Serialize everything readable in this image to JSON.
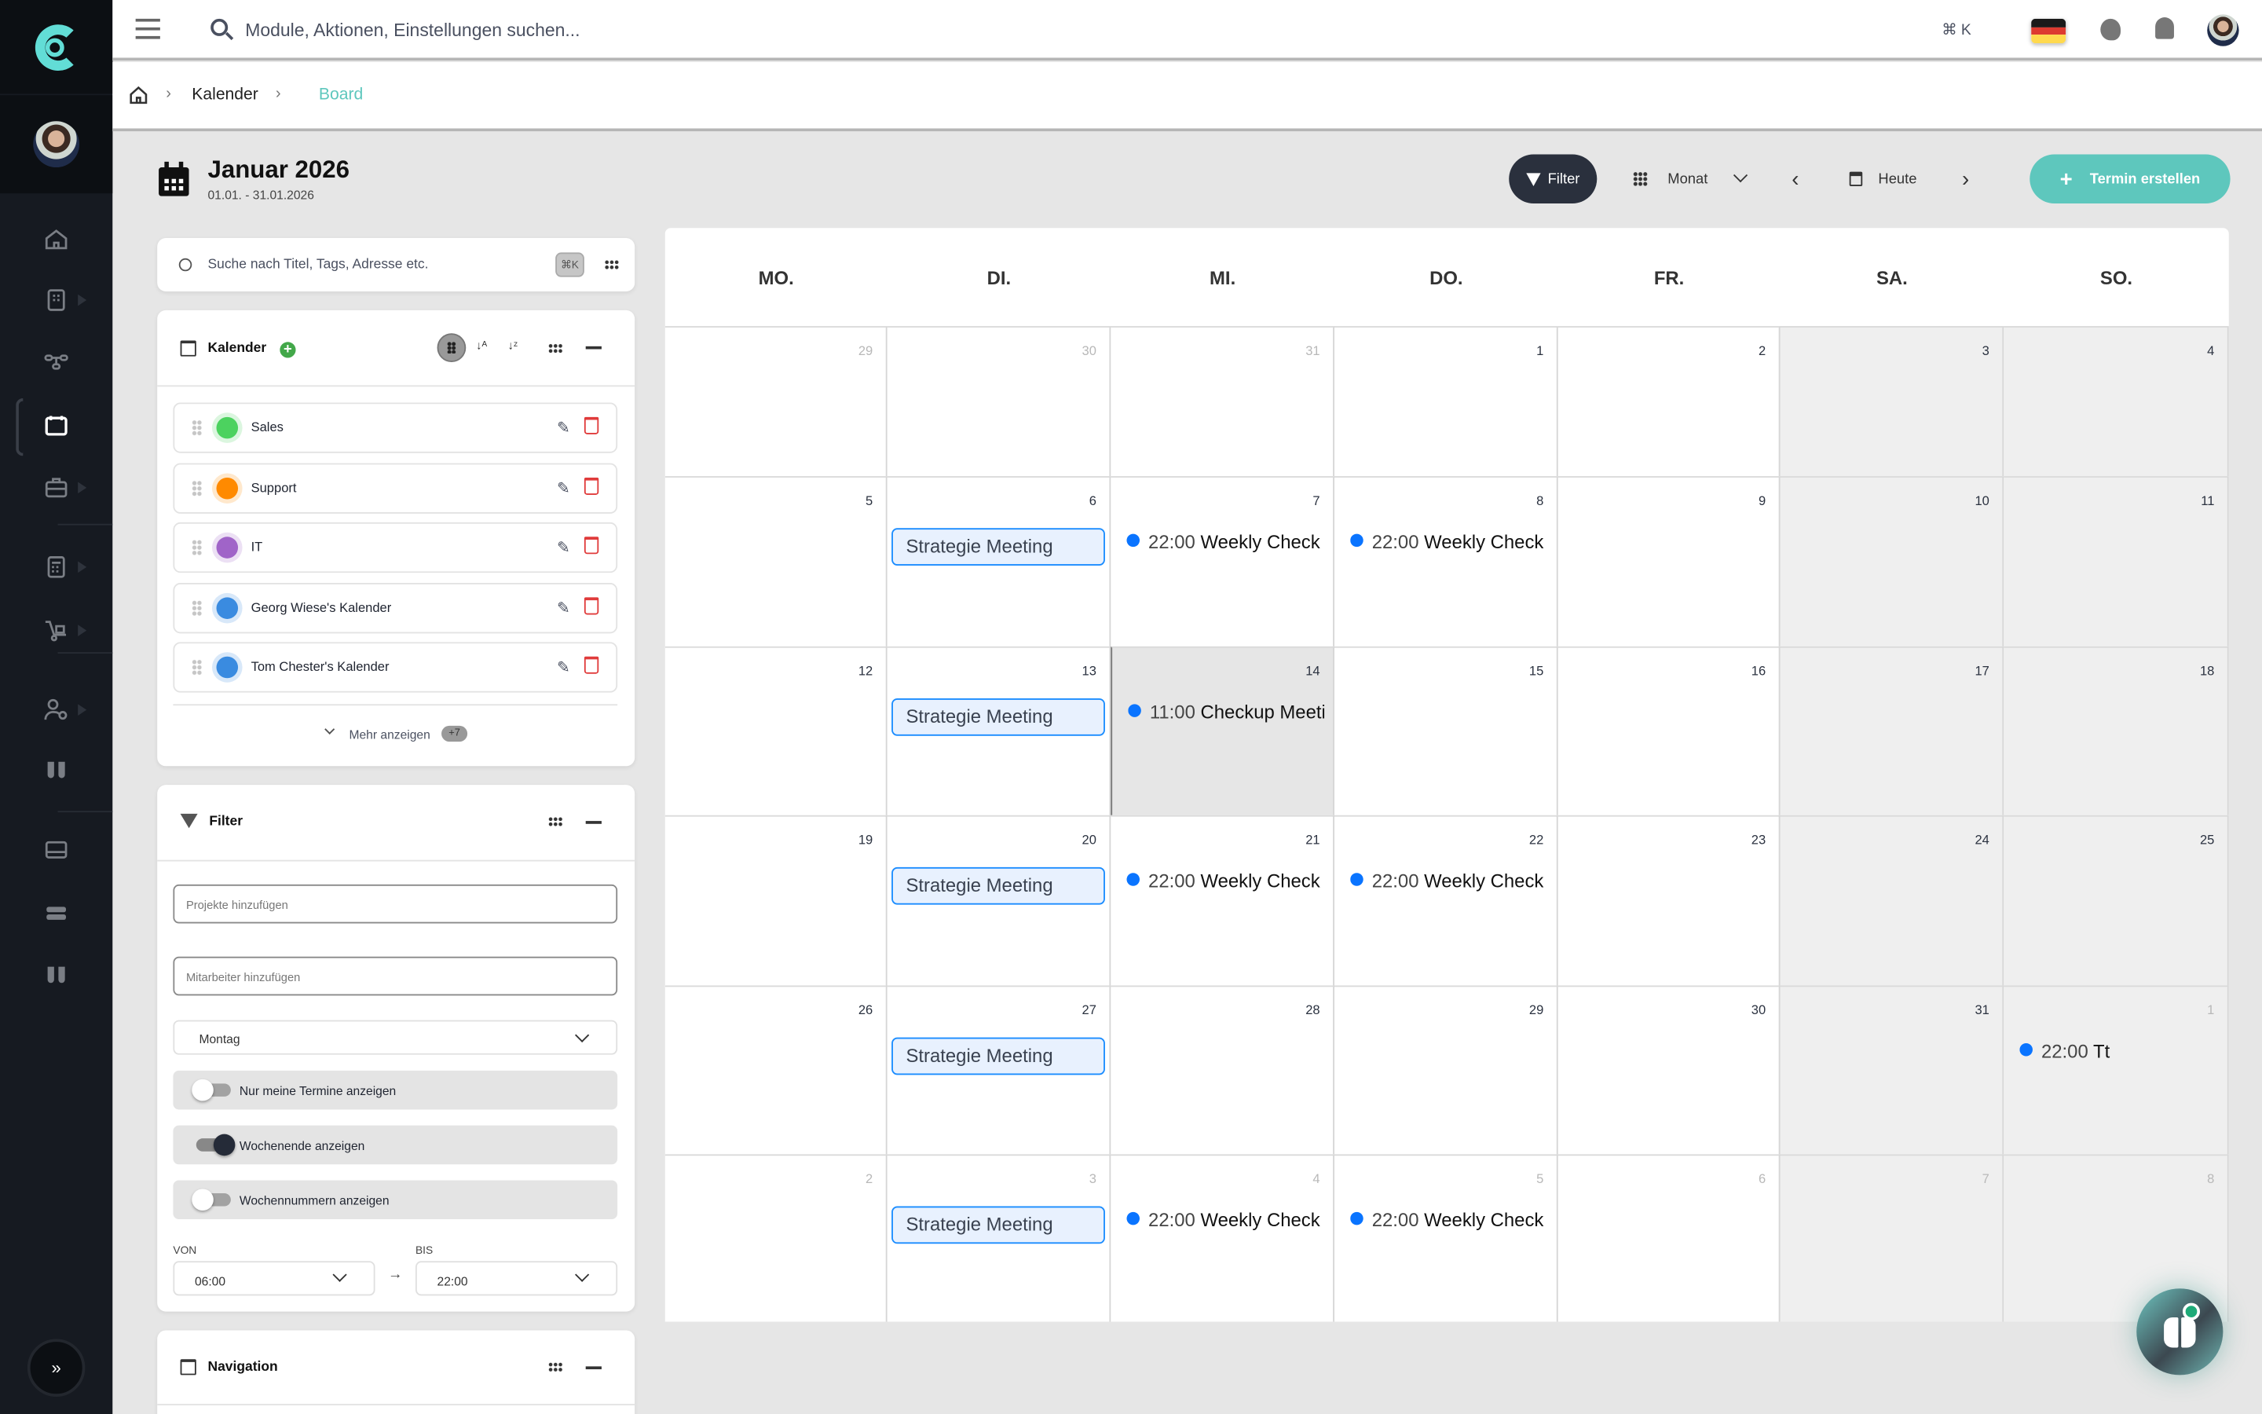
{
  "colors": {
    "accent": "#5ec7bd",
    "sidebar_bg": "#161a21",
    "event_blue": "#0a74ff",
    "filter_btn": "#2a303d"
  },
  "topbar": {
    "search_placeholder": "Module, Aktionen, Einstellungen suchen...",
    "shortcut": "⌘ K",
    "language": "de"
  },
  "breadcrumb": {
    "items": [
      "Kalender",
      "Board"
    ]
  },
  "header": {
    "title": "Januar 2026",
    "range": "01.01. - 31.01.2026",
    "filter_label": "Filter",
    "view_label": "Monat",
    "today_label": "Heute",
    "create_label": "Termin erstellen"
  },
  "search": {
    "placeholder": "Suche nach Titel, Tags, Adresse etc.",
    "shortcut": "⌘K"
  },
  "calendars": {
    "title": "Kalender",
    "items": [
      {
        "name": "Sales",
        "color": "#4cd25f"
      },
      {
        "name": "Support",
        "color": "#ff8a00"
      },
      {
        "name": "IT",
        "color": "#a064c8"
      },
      {
        "name": "Georg Wiese's Kalender",
        "color": "#3a8be0"
      },
      {
        "name": "Tom Chester's Kalender",
        "color": "#3a8be0"
      }
    ],
    "more_label": "Mehr anzeigen",
    "more_count": "+7"
  },
  "filter": {
    "title": "Filter",
    "projects_placeholder": "Projekte hinzufügen",
    "employees_placeholder": "Mitarbeiter hinzufügen",
    "week_start": "Montag",
    "toggles": [
      {
        "label": "Nur meine Termine anzeigen",
        "on": false
      },
      {
        "label": "Wochenende anzeigen",
        "on": true
      },
      {
        "label": "Wochennummern anzeigen",
        "on": false
      }
    ],
    "from_label": "VON",
    "from_value": "06:00",
    "to_label": "BIS",
    "to_value": "22:00"
  },
  "navigation": {
    "title": "Navigation"
  },
  "calendar": {
    "weekdays": [
      "MO.",
      "DI.",
      "MI.",
      "DO.",
      "FR.",
      "SA.",
      "SO."
    ],
    "weeks": [
      [
        {
          "n": "29",
          "muted": true
        },
        {
          "n": "30",
          "muted": true
        },
        {
          "n": "31",
          "muted": true
        },
        {
          "n": "1"
        },
        {
          "n": "2"
        },
        {
          "n": "3"
        },
        {
          "n": "4"
        }
      ],
      [
        {
          "n": "5"
        },
        {
          "n": "6",
          "events": [
            {
              "type": "block",
              "title": "Strategie Meeting"
            }
          ]
        },
        {
          "n": "7",
          "events": [
            {
              "type": "dot",
              "time": "22:00",
              "title": "Weekly Check"
            }
          ]
        },
        {
          "n": "8",
          "events": [
            {
              "type": "dot",
              "time": "22:00",
              "title": "Weekly Check"
            }
          ]
        },
        {
          "n": "9"
        },
        {
          "n": "10"
        },
        {
          "n": "11"
        }
      ],
      [
        {
          "n": "12"
        },
        {
          "n": "13",
          "events": [
            {
              "type": "block",
              "title": "Strategie Meeting"
            }
          ]
        },
        {
          "n": "14",
          "today": true,
          "events": [
            {
              "type": "dot",
              "time": "11:00",
              "title": "Checkup Meeting"
            }
          ]
        },
        {
          "n": "15"
        },
        {
          "n": "16"
        },
        {
          "n": "17"
        },
        {
          "n": "18"
        }
      ],
      [
        {
          "n": "19"
        },
        {
          "n": "20",
          "events": [
            {
              "type": "block",
              "title": "Strategie Meeting"
            }
          ]
        },
        {
          "n": "21",
          "events": [
            {
              "type": "dot",
              "time": "22:00",
              "title": "Weekly Check"
            }
          ]
        },
        {
          "n": "22",
          "events": [
            {
              "type": "dot",
              "time": "22:00",
              "title": "Weekly Check"
            }
          ]
        },
        {
          "n": "23"
        },
        {
          "n": "24"
        },
        {
          "n": "25"
        }
      ],
      [
        {
          "n": "26"
        },
        {
          "n": "27",
          "events": [
            {
              "type": "block",
              "title": "Strategie Meeting"
            }
          ]
        },
        {
          "n": "28"
        },
        {
          "n": "29"
        },
        {
          "n": "30"
        },
        {
          "n": "31"
        },
        {
          "n": "1",
          "muted": true,
          "events": [
            {
              "type": "dot",
              "time": "22:00",
              "title": "Tt"
            }
          ]
        }
      ],
      [
        {
          "n": "2",
          "muted": true
        },
        {
          "n": "3",
          "muted": true,
          "events": [
            {
              "type": "block",
              "title": "Strategie Meeting"
            }
          ]
        },
        {
          "n": "4",
          "muted": true,
          "events": [
            {
              "type": "dot",
              "time": "22:00",
              "title": "Weekly Check"
            }
          ]
        },
        {
          "n": "5",
          "muted": true,
          "events": [
            {
              "type": "dot",
              "time": "22:00",
              "title": "Weekly Check"
            }
          ]
        },
        {
          "n": "6",
          "muted": true
        },
        {
          "n": "7",
          "muted": true
        },
        {
          "n": "8",
          "muted": true
        }
      ]
    ]
  }
}
